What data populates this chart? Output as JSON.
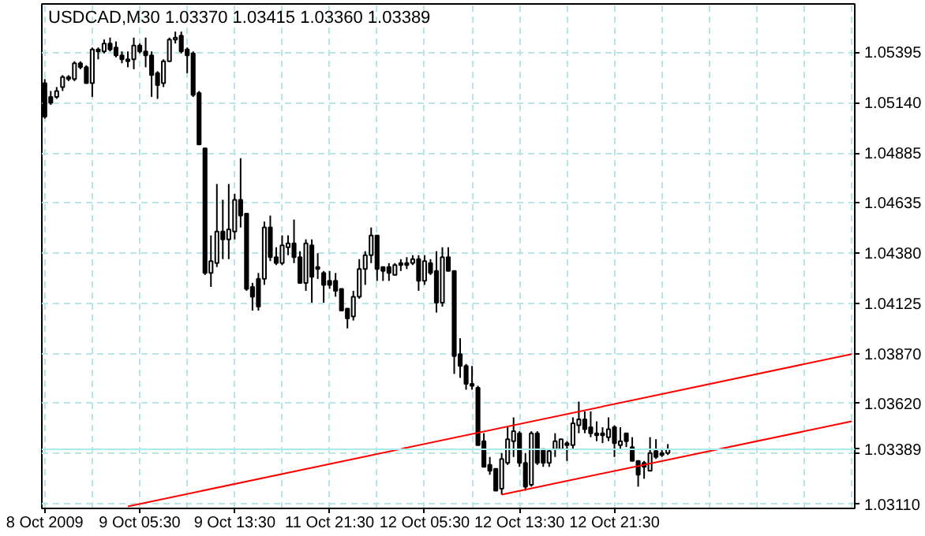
{
  "chart_data": {
    "type": "candlestick",
    "title": "USDCAD,M30  1.03370 1.03415 1.03360 1.03389",
    "ylim": [
      1.0309,
      1.0564
    ],
    "categories": [
      "8 Oct 2009",
      null,
      null,
      null,
      null,
      null,
      null,
      null,
      null,
      null,
      null,
      null,
      null,
      null,
      null,
      null,
      "9 Oct 05:30",
      null,
      null,
      null,
      null,
      null,
      null,
      null,
      null,
      null,
      null,
      null,
      null,
      null,
      null,
      null,
      "9 Oct 13:30",
      null,
      null,
      null,
      null,
      null,
      null,
      null,
      null,
      null,
      null,
      null,
      null,
      null,
      null,
      null,
      "11 Oct 21:30",
      null,
      null,
      null,
      null,
      null,
      null,
      null,
      null,
      null,
      null,
      null,
      null,
      null,
      null,
      null,
      "12 Oct 05:30",
      null,
      null,
      null,
      null,
      null,
      null,
      null,
      null,
      null,
      null,
      null,
      null,
      null,
      null,
      null,
      "12 Oct 13:30",
      null,
      null,
      null,
      null,
      null,
      null,
      null,
      null,
      null,
      null,
      null,
      null,
      null,
      null,
      null,
      "12 Oct 21:30",
      null,
      null,
      null,
      null,
      null,
      null,
      null,
      null,
      null,
      null,
      null,
      null,
      null,
      null,
      null,
      null,
      null,
      null,
      null,
      null,
      null,
      null,
      null,
      null,
      null,
      null,
      null,
      null,
      null,
      null,
      null,
      null,
      null,
      null,
      null,
      null,
      null,
      null,
      null,
      null
    ],
    "yticks": [
      {
        "value": 1.0311,
        "label": "1.03110"
      },
      {
        "value": 1.03365,
        "label": null
      },
      {
        "value": 1.0362,
        "label": "1.03620"
      },
      {
        "value": 1.0387,
        "label": "1.03870"
      },
      1.04125,
      {
        "value": 1.0438,
        "label": "1.04380"
      },
      1.04635,
      1.04885,
      {
        "value": 1.0514,
        "label": "1.05140"
      },
      1.05395
    ],
    "grid": true,
    "ref_lines": [
      {
        "axis": "y",
        "value": 1.03389,
        "label": "1.03389",
        "color": "#a8ecec"
      }
    ],
    "series": [
      {
        "color": "#000000",
        "ohlc": [
          [
            1.0524,
            1.0526,
            1.0506,
            1.0507
          ],
          [
            1.0517,
            1.052,
            1.0513,
            1.0514
          ],
          [
            1.0517,
            1.0522,
            1.0516,
            1.052
          ],
          [
            1.0522,
            1.0528,
            1.052,
            1.0527
          ],
          [
            1.0527,
            1.0528,
            1.0525,
            1.0526
          ],
          [
            1.0526,
            1.0535,
            1.0525,
            1.0534
          ],
          [
            1.0534,
            1.0535,
            1.0531,
            1.0532
          ],
          [
            1.0532,
            1.0533,
            1.0524,
            1.0524
          ],
          [
            1.0524,
            1.0542,
            1.0517,
            1.0541
          ],
          [
            1.0541,
            1.0542,
            1.0536,
            1.054
          ],
          [
            1.054,
            1.0546,
            1.0539,
            1.0544
          ],
          [
            1.0544,
            1.0547,
            1.054,
            1.0541
          ],
          [
            1.0542,
            1.0545,
            1.0537,
            1.0538
          ],
          [
            1.0538,
            1.054,
            1.0534,
            1.0536
          ],
          [
            1.0536,
            1.054,
            1.0532,
            1.0535
          ],
          [
            1.0536,
            1.0547,
            1.0531,
            1.0543
          ],
          [
            1.0543,
            1.0544,
            1.0539,
            1.054
          ],
          [
            1.054,
            1.0547,
            1.0532,
            1.0538
          ],
          [
            1.0538,
            1.054,
            1.0517,
            1.0528
          ],
          [
            1.0529,
            1.053,
            1.0516,
            1.0523
          ],
          [
            1.0524,
            1.0536,
            1.0522,
            1.0535
          ],
          [
            1.0535,
            1.0547,
            1.0535,
            1.0546
          ],
          [
            1.0546,
            1.055,
            1.0544,
            1.0547
          ],
          [
            1.0548,
            1.055,
            1.0539,
            1.054
          ],
          [
            1.0541,
            1.0542,
            1.0529,
            1.0538
          ],
          [
            1.0539,
            1.054,
            1.0517,
            1.0518
          ],
          [
            1.0519,
            1.052,
            1.0493,
            1.0493
          ],
          [
            1.0491,
            1.0491,
            1.0427,
            1.0428
          ],
          [
            1.0428,
            1.0447,
            1.0421,
            1.0434
          ],
          [
            1.0433,
            1.0473,
            1.0431,
            1.0449
          ],
          [
            1.0449,
            1.0465,
            1.0435,
            1.0445
          ],
          [
            1.0445,
            1.0473,
            1.0435,
            1.045
          ],
          [
            1.0449,
            1.0468,
            1.0445,
            1.0465
          ],
          [
            1.0465,
            1.0486,
            1.0451,
            1.0457
          ],
          [
            1.0458,
            1.0458,
            1.0419,
            1.042
          ],
          [
            1.0421,
            1.0423,
            1.0409,
            1.0416
          ],
          [
            1.0425,
            1.0428,
            1.0409,
            1.0411
          ],
          [
            1.0425,
            1.0454,
            1.0422,
            1.0451
          ],
          [
            1.0451,
            1.0457,
            1.0434,
            1.0436
          ],
          [
            1.0436,
            1.0441,
            1.0432,
            1.0433
          ],
          [
            1.0433,
            1.0447,
            1.0432,
            1.0442
          ],
          [
            1.0441,
            1.0447,
            1.0437,
            1.0443
          ],
          [
            1.0443,
            1.0455,
            1.0433,
            1.0436
          ],
          [
            1.0436,
            1.0439,
            1.0423,
            1.0423
          ],
          [
            1.0423,
            1.0445,
            1.0419,
            1.0443
          ],
          [
            1.0442,
            1.0445,
            1.0413,
            1.0426
          ],
          [
            1.0431,
            1.0438,
            1.0425,
            1.043
          ],
          [
            1.0428,
            1.0429,
            1.0413,
            1.0422
          ],
          [
            1.0424,
            1.0429,
            1.042,
            1.0422
          ],
          [
            1.0424,
            1.0428,
            1.0416,
            1.0419
          ],
          [
            1.042,
            1.042,
            1.0409,
            1.0409
          ],
          [
            1.041,
            1.041,
            1.04,
            1.0405
          ],
          [
            1.0406,
            1.0419,
            1.0404,
            1.0416
          ],
          [
            1.0416,
            1.0435,
            1.0415,
            1.043
          ],
          [
            1.043,
            1.0439,
            1.0422,
            1.0437
          ],
          [
            1.0437,
            1.0451,
            1.0433,
            1.0447
          ],
          [
            1.0447,
            1.0447,
            1.0424,
            1.043
          ],
          [
            1.0431,
            1.0431,
            1.0424,
            1.0429
          ],
          [
            1.0431,
            1.0433,
            1.0424,
            1.0428
          ],
          [
            1.0427,
            1.0433,
            1.0427,
            1.0432
          ],
          [
            1.0433,
            1.0435,
            1.0429,
            1.0432
          ],
          [
            1.0433,
            1.0436,
            1.043,
            1.0432
          ],
          [
            1.0433,
            1.0437,
            1.0432,
            1.0435
          ],
          [
            1.0435,
            1.0437,
            1.0419,
            1.0424
          ],
          [
            1.0424,
            1.0437,
            1.0422,
            1.0434
          ],
          [
            1.0433,
            1.0435,
            1.0427,
            1.0428
          ],
          [
            1.0429,
            1.0439,
            1.0408,
            1.0413
          ],
          [
            1.0413,
            1.0441,
            1.0411,
            1.0436
          ],
          [
            1.0436,
            1.0441,
            1.0429,
            1.0429
          ],
          [
            1.0429,
            1.0429,
            1.0377,
            1.0386
          ],
          [
            1.0387,
            1.0395,
            1.0375,
            1.0381
          ],
          [
            1.0381,
            1.0382,
            1.0369,
            1.0372
          ],
          [
            1.0372,
            1.0381,
            1.0369,
            1.0371
          ],
          [
            1.037,
            1.0371,
            1.0341,
            1.0341
          ],
          [
            1.0343,
            1.0347,
            1.033,
            1.033
          ],
          [
            1.0331,
            1.0335,
            1.0326,
            1.0328
          ],
          [
            1.0329,
            1.0329,
            1.0318,
            1.0318
          ],
          [
            1.0319,
            1.0337,
            1.0316,
            1.0334
          ],
          [
            1.0332,
            1.035,
            1.0331,
            1.0344
          ],
          [
            1.0343,
            1.0355,
            1.0335,
            1.0348
          ],
          [
            1.0347,
            1.0348,
            1.033,
            1.0332
          ],
          [
            1.0332,
            1.0337,
            1.0318,
            1.032
          ],
          [
            1.0321,
            1.0348,
            1.032,
            1.0347
          ],
          [
            1.0347,
            1.0348,
            1.0331,
            1.0332
          ],
          [
            1.0339,
            1.0339,
            1.033,
            1.0332
          ],
          [
            1.0332,
            1.0339,
            1.033,
            1.0338
          ],
          [
            1.0339,
            1.0347,
            1.0335,
            1.0343
          ],
          [
            1.0339,
            1.0344,
            1.0339,
            1.0344
          ],
          [
            1.0342,
            1.0343,
            1.0333,
            1.0341
          ],
          [
            1.0341,
            1.0355,
            1.0339,
            1.0352
          ],
          [
            1.0351,
            1.0363,
            1.0347,
            1.0354
          ],
          [
            1.0354,
            1.0358,
            1.0347,
            1.0349
          ],
          [
            1.035,
            1.0358,
            1.0345,
            1.0347
          ],
          [
            1.0347,
            1.0353,
            1.0343,
            1.0346
          ],
          [
            1.0347,
            1.035,
            1.0342,
            1.0346
          ],
          [
            1.0345,
            1.0355,
            1.0343,
            1.0349
          ],
          [
            1.035,
            1.0351,
            1.0335,
            1.0342
          ],
          [
            1.0341,
            1.035,
            1.0339,
            1.0343
          ],
          [
            1.0347,
            1.0347,
            1.034,
            1.0343
          ],
          [
            1.034,
            1.0345,
            1.0333,
            1.0333
          ],
          [
            1.0333,
            1.0333,
            1.032,
            1.0326
          ],
          [
            1.0332,
            1.0333,
            1.0324,
            1.033
          ],
          [
            1.0328,
            1.0345,
            1.0328,
            1.0337
          ],
          [
            1.0338,
            1.0344,
            1.0334,
            1.0335
          ],
          [
            1.0337,
            1.0339,
            1.0335,
            1.0336
          ],
          [
            1.0337,
            1.03415,
            1.0336,
            1.03389
          ],
          null,
          null,
          null,
          null,
          null,
          null,
          null,
          null,
          null,
          null,
          null,
          null,
          null,
          null,
          null,
          null,
          null,
          null,
          null,
          null,
          null,
          null,
          null,
          null,
          null,
          null,
          null,
          null,
          null,
          null,
          null
        ]
      },
      {
        "type": "line",
        "color": "#ff0000",
        "values": [
          null,
          null,
          null,
          null,
          null,
          null,
          null,
          null,
          null,
          null,
          null,
          null,
          null,
          null,
          1.031,
          null,
          null,
          null,
          null,
          null,
          null,
          null,
          null,
          null,
          null,
          null,
          null,
          null,
          null,
          null,
          null,
          null,
          null,
          null,
          null,
          null,
          null,
          null,
          null,
          null,
          null,
          null,
          null,
          null,
          null,
          null,
          null,
          null,
          null,
          null,
          null,
          null,
          null,
          null,
          null,
          null,
          null,
          null,
          null,
          null,
          null,
          null,
          null,
          null,
          null,
          null,
          null,
          null,
          null,
          null,
          null,
          null,
          null,
          null,
          null,
          null,
          null,
          null,
          null,
          null,
          null,
          null,
          null,
          null,
          null,
          null,
          null,
          null,
          null,
          null,
          null,
          null,
          null,
          null,
          null,
          null,
          null,
          null,
          null,
          null,
          null,
          null,
          null,
          null,
          null,
          null,
          null,
          null,
          null,
          null,
          null,
          null,
          null,
          null,
          null,
          null,
          null,
          null,
          null,
          null,
          null,
          null,
          null,
          null,
          null,
          null,
          null,
          null,
          null,
          null,
          null,
          null,
          null,
          null,
          null,
          null,
          1.0387
        ]
      },
      {
        "type": "line",
        "color": "#ff0000",
        "values": [
          null,
          null,
          null,
          null,
          null,
          null,
          null,
          null,
          null,
          null,
          null,
          null,
          null,
          null,
          null,
          null,
          null,
          null,
          null,
          null,
          null,
          null,
          null,
          null,
          null,
          null,
          null,
          null,
          null,
          null,
          null,
          null,
          null,
          null,
          null,
          null,
          null,
          null,
          null,
          null,
          null,
          null,
          null,
          null,
          null,
          null,
          null,
          null,
          null,
          null,
          null,
          null,
          null,
          null,
          null,
          null,
          null,
          null,
          null,
          null,
          null,
          null,
          null,
          null,
          null,
          null,
          null,
          null,
          null,
          null,
          null,
          null,
          null,
          null,
          null,
          null,
          null,
          1.0316,
          null,
          null,
          null,
          null,
          null,
          null,
          null,
          null,
          null,
          null,
          null,
          null,
          null,
          null,
          null,
          null,
          null,
          null,
          null,
          null,
          null,
          null,
          null,
          null,
          null,
          null,
          null,
          null,
          null,
          null,
          null,
          null,
          null,
          null,
          null,
          null,
          null,
          null,
          null,
          null,
          null,
          null,
          null,
          null,
          null,
          null,
          null,
          null,
          null,
          null,
          null,
          null,
          null,
          null,
          null,
          null,
          null,
          null,
          1.0353
        ]
      }
    ]
  }
}
